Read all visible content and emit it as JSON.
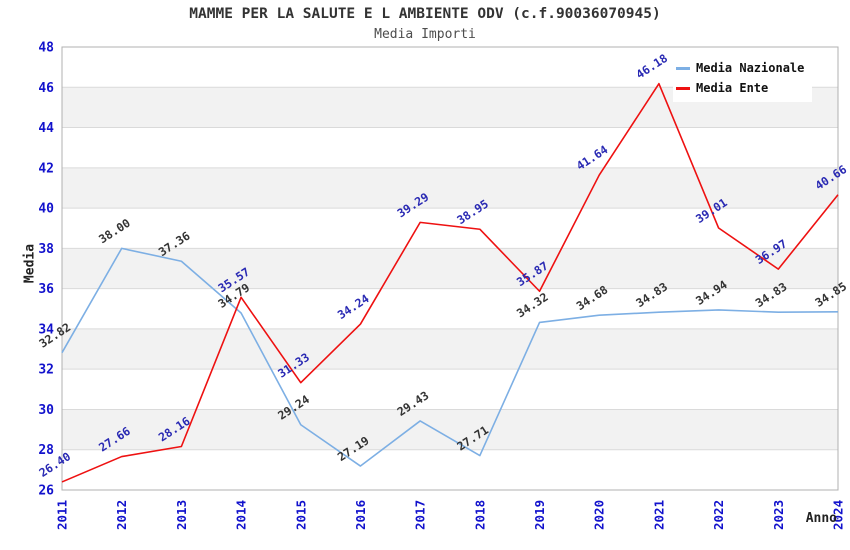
{
  "header": {
    "title": "MAMME PER LA SALUTE E L AMBIENTE ODV (c.f.90036070945)",
    "subtitle": "Media Importi"
  },
  "chart_data": {
    "type": "line",
    "title": "MAMME PER LA SALUTE E L AMBIENTE ODV (c.f.90036070945)",
    "subtitle": "Media Importi",
    "xlabel": "Anno",
    "ylabel": "Media",
    "x": [
      2011,
      2012,
      2013,
      2014,
      2015,
      2016,
      2017,
      2018,
      2019,
      2020,
      2021,
      2022,
      2023,
      2024
    ],
    "ylim": [
      26,
      48
    ],
    "ytick_step": 2,
    "grid": "horizontal-bands",
    "band_colors": [
      "#ffffff",
      "#f2f2f2"
    ],
    "tick_color": "#1212cc",
    "legend_position": "top-right",
    "series": [
      {
        "name": "Media Nazionale",
        "color": "#7dafe4",
        "label_color": "#333333",
        "values": [
          32.82,
          38.0,
          37.36,
          34.79,
          29.24,
          27.19,
          29.43,
          27.71,
          34.32,
          34.68,
          34.83,
          34.94,
          34.83,
          34.85
        ],
        "labels": [
          "32.82",
          "38.00",
          "37.36",
          "34.79",
          "29.24",
          "27.19",
          "29.43",
          "27.71",
          "34.32",
          "34.68",
          "34.83",
          "34.94",
          "34.83",
          "34.85"
        ]
      },
      {
        "name": "Media Ente",
        "color": "#ee1111",
        "label_color": "#2929b3",
        "values": [
          26.4,
          27.66,
          28.16,
          35.57,
          31.33,
          34.24,
          39.29,
          38.95,
          35.87,
          41.64,
          46.18,
          39.01,
          36.97,
          40.66
        ],
        "labels": [
          "26.40",
          "27.66",
          "28.16",
          "35.57",
          "31.33",
          "34.24",
          "39.29",
          "38.95",
          "35.87",
          "41.64",
          "46.18",
          "39.01",
          "36.97",
          "40.66"
        ]
      }
    ]
  }
}
